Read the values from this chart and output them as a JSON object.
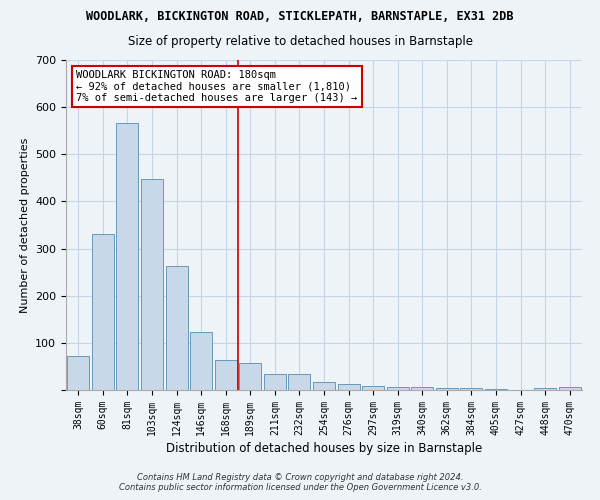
{
  "title": "WOODLARK, BICKINGTON ROAD, STICKLEPATH, BARNSTAPLE, EX31 2DB",
  "subtitle": "Size of property relative to detached houses in Barnstaple",
  "xlabel": "Distribution of detached houses by size in Barnstaple",
  "ylabel": "Number of detached properties",
  "categories": [
    "38sqm",
    "60sqm",
    "81sqm",
    "103sqm",
    "124sqm",
    "146sqm",
    "168sqm",
    "189sqm",
    "211sqm",
    "232sqm",
    "254sqm",
    "276sqm",
    "297sqm",
    "319sqm",
    "340sqm",
    "362sqm",
    "384sqm",
    "405sqm",
    "427sqm",
    "448sqm",
    "470sqm"
  ],
  "values": [
    72,
    330,
    567,
    447,
    262,
    122,
    63,
    58,
    33,
    33,
    17,
    13,
    8,
    7,
    6,
    5,
    5,
    2,
    0,
    5,
    6
  ],
  "bar_color": "#c8d8e8",
  "bar_edge_color": "#6699bb",
  "grid_color": "#c5d5e5",
  "background_color": "#eef3f8",
  "vline_color": "#cc0000",
  "annotation_text": "WOODLARK BICKINGTON ROAD: 180sqm\n← 92% of detached houses are smaller (1,810)\n7% of semi-detached houses are larger (143) →",
  "annotation_box_color": "#ffffff",
  "annotation_box_edge": "#cc0000",
  "ylim": [
    0,
    700
  ],
  "yticks": [
    0,
    100,
    200,
    300,
    400,
    500,
    600,
    700
  ],
  "footnote1": "Contains HM Land Registry data © Crown copyright and database right 2024.",
  "footnote2": "Contains public sector information licensed under the Open Government Licence v3.0."
}
